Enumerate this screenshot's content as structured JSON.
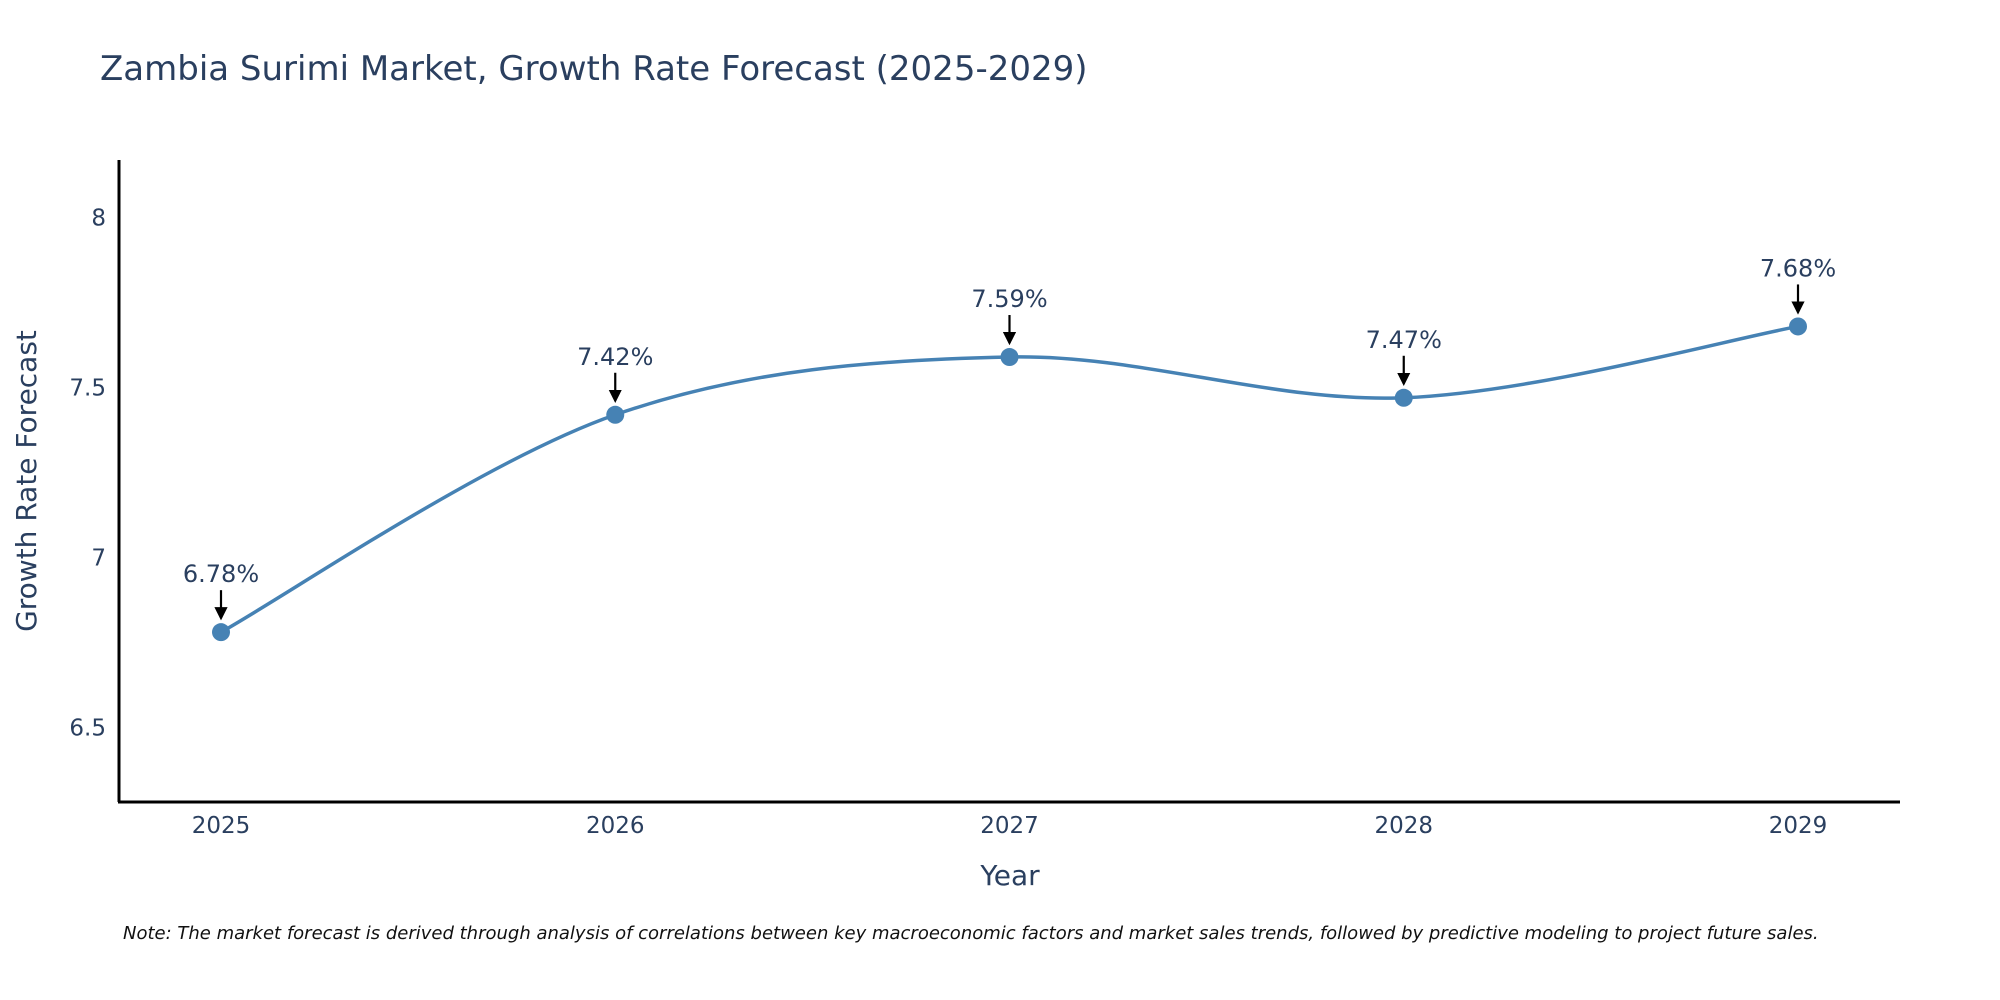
{
  "colors": {
    "line": "#4682b4",
    "marker": "#4682b4",
    "text": "#2a3f5f",
    "axis": "#000000",
    "arrow": "#000000"
  },
  "chart_data": {
    "type": "line",
    "title": "Zambia Surimi Market, Growth Rate Forecast (2025-2029)",
    "xlabel": "Year",
    "ylabel": "Growth Rate Forecast",
    "categories": [
      "2025",
      "2026",
      "2027",
      "2028",
      "2029"
    ],
    "series": [
      {
        "name": "Growth Rate Forecast",
        "values": [
          6.78,
          7.42,
          7.59,
          7.47,
          7.68
        ]
      }
    ],
    "data_labels": [
      "6.78%",
      "7.42%",
      "7.59%",
      "7.47%",
      "7.68%"
    ],
    "ylim": [
      6.28,
      8.17
    ],
    "yticks": [
      6.5,
      7,
      7.5,
      8
    ],
    "ytick_labels": [
      "6.5",
      "7",
      "7.5",
      "8"
    ],
    "line_shape": "spline",
    "grid": false,
    "note": "Note: The market forecast is derived through analysis of correlations between key macroeconomic factors and market sales trends, followed by predictive modeling to project future sales."
  }
}
